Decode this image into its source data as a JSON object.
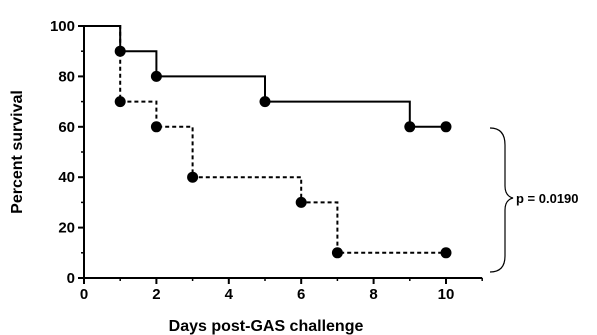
{
  "chart_data": {
    "type": "line",
    "step": true,
    "xlabel": "Days post-GAS challenge",
    "ylabel": "Percent survival",
    "xlim": [
      0,
      11
    ],
    "ylim": [
      0,
      100
    ],
    "xticks": [
      0,
      2,
      4,
      6,
      8,
      10
    ],
    "yticks": [
      0,
      20,
      40,
      60,
      80,
      100
    ],
    "grid": false,
    "series": [
      {
        "style": "solid",
        "color": "#000000",
        "x": [
          0,
          1,
          2,
          5,
          9,
          10
        ],
        "y": [
          100,
          90,
          80,
          70,
          60,
          60
        ],
        "markers_x": [
          1,
          2,
          5,
          9,
          10
        ],
        "markers_y": [
          90,
          80,
          70,
          60,
          60
        ]
      },
      {
        "style": "dashed",
        "color": "#000000",
        "x": [
          0,
          1,
          2,
          3,
          6,
          7,
          10
        ],
        "y": [
          100,
          70,
          60,
          40,
          30,
          10,
          10
        ],
        "markers_x": [
          1,
          2,
          3,
          6,
          7,
          10
        ],
        "markers_y": [
          70,
          60,
          40,
          30,
          10,
          10
        ]
      }
    ],
    "annotation": "p = 0.0190"
  }
}
